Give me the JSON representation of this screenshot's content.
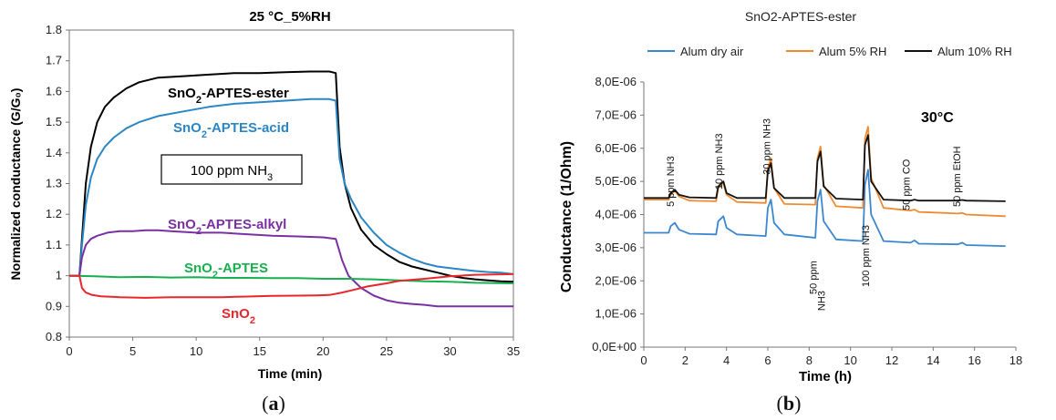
{
  "chart_data": [
    {
      "type": "line",
      "panel_label": "a",
      "title": "25 °C_5%RH",
      "xlabel": "Time (min)",
      "ylabel": "Normalized conductance (G/G₀)",
      "xlim": [
        0,
        35
      ],
      "ylim": [
        0.8,
        1.8
      ],
      "xticks": [
        0,
        5,
        10,
        15,
        20,
        25,
        30,
        35
      ],
      "yticks": [
        0.8,
        0.9,
        1,
        1.1,
        1.2,
        1.3,
        1.4,
        1.5,
        1.6,
        1.7,
        1.8
      ],
      "ytick_labels": [
        "0.8",
        "0.9",
        "1",
        "1.1",
        "1.2",
        "1.3",
        "1.4",
        "1.5",
        "1.6",
        "1.7",
        "1.8"
      ],
      "grid": false,
      "annotation": {
        "text": "100 ppm NH",
        "subscript": "3"
      },
      "series": [
        {
          "name": "SnO₂-APTES-ester",
          "label_main": "SnO",
          "label_sub": "2",
          "label_rest": "-APTES-ester",
          "color": "#000000",
          "x": [
            0,
            0.8,
            1.0,
            1.3,
            1.7,
            2.2,
            2.8,
            3.5,
            4.5,
            5.5,
            7,
            9,
            11,
            13,
            15,
            17,
            19,
            20.5,
            21,
            21.3,
            21.7,
            22.2,
            23,
            24,
            25,
            26,
            27,
            28,
            29,
            30,
            31,
            32,
            33,
            34,
            35
          ],
          "y": [
            1.0,
            1.0,
            1.12,
            1.3,
            1.42,
            1.5,
            1.55,
            1.58,
            1.61,
            1.63,
            1.645,
            1.65,
            1.655,
            1.66,
            1.66,
            1.663,
            1.665,
            1.665,
            1.66,
            1.42,
            1.3,
            1.22,
            1.15,
            1.1,
            1.07,
            1.045,
            1.03,
            1.02,
            1.01,
            1.0,
            0.993,
            0.988,
            0.985,
            0.982,
            0.98
          ]
        },
        {
          "name": "SnO₂-APTES-acid",
          "label_main": "SnO",
          "label_sub": "2",
          "label_rest": "-APTES-acid",
          "color": "#2b86c5",
          "x": [
            0,
            0.8,
            1.0,
            1.3,
            1.7,
            2.2,
            2.8,
            3.5,
            4.5,
            5.5,
            7,
            9,
            11,
            13,
            15,
            17,
            19,
            20.5,
            21,
            21.3,
            21.7,
            22.2,
            23,
            24,
            25,
            26,
            27,
            28,
            29,
            30,
            31,
            32,
            33,
            34,
            35
          ],
          "y": [
            1.0,
            1.0,
            1.1,
            1.23,
            1.32,
            1.38,
            1.42,
            1.45,
            1.48,
            1.5,
            1.52,
            1.535,
            1.55,
            1.56,
            1.565,
            1.57,
            1.575,
            1.575,
            1.57,
            1.38,
            1.3,
            1.25,
            1.19,
            1.14,
            1.1,
            1.075,
            1.055,
            1.04,
            1.03,
            1.025,
            1.02,
            1.015,
            1.012,
            1.01,
            1.005
          ]
        },
        {
          "name": "SnO₂-APTES-alkyl",
          "label_main": "SnO",
          "label_sub": "2",
          "label_rest": "-APTES-alkyl",
          "color": "#7a2fa3",
          "x": [
            0,
            0.8,
            1.0,
            1.3,
            1.7,
            2.2,
            3,
            4,
            5,
            6,
            7,
            8,
            10,
            12,
            14,
            16,
            18,
            20,
            21,
            21.5,
            22,
            23,
            24,
            25,
            26,
            27,
            28,
            29,
            30,
            31,
            32,
            33,
            34,
            35
          ],
          "y": [
            1.0,
            1.0,
            1.06,
            1.1,
            1.12,
            1.13,
            1.14,
            1.145,
            1.145,
            1.148,
            1.148,
            1.145,
            1.14,
            1.14,
            1.135,
            1.13,
            1.128,
            1.125,
            1.12,
            1.05,
            1.0,
            0.96,
            0.935,
            0.92,
            0.912,
            0.908,
            0.905,
            0.9,
            0.9,
            0.9,
            0.9,
            0.9,
            0.9,
            0.9
          ]
        },
        {
          "name": "SnO₂-APTES",
          "label_main": "SnO",
          "label_sub": "2",
          "label_rest": "-APTES",
          "color": "#18b04f",
          "x": [
            0,
            2,
            4,
            6,
            8,
            10,
            12,
            14,
            16,
            18,
            20,
            22,
            24,
            26,
            28,
            30,
            32,
            35
          ],
          "y": [
            1.0,
            0.998,
            0.995,
            0.996,
            0.994,
            0.995,
            0.993,
            0.993,
            0.992,
            0.992,
            0.99,
            0.99,
            0.988,
            0.985,
            0.982,
            0.98,
            0.977,
            0.975
          ]
        },
        {
          "name": "SnO₂",
          "label_main": "SnO",
          "label_sub": "2",
          "label_rest": "",
          "color": "#e8262b",
          "x": [
            0,
            0.8,
            1.0,
            1.3,
            1.8,
            2.5,
            4,
            6,
            8,
            10,
            12,
            14,
            16,
            18,
            19.5,
            20.5,
            21.5,
            22.5,
            23.5,
            25,
            26,
            28,
            30,
            32,
            35
          ],
          "y": [
            1.0,
            1.0,
            0.96,
            0.945,
            0.937,
            0.933,
            0.93,
            0.928,
            0.93,
            0.93,
            0.93,
            0.932,
            0.934,
            0.935,
            0.936,
            0.937,
            0.945,
            0.955,
            0.965,
            0.975,
            0.983,
            0.99,
            0.998,
            1.003,
            1.005
          ]
        }
      ]
    },
    {
      "type": "line",
      "panel_label": "b",
      "title": "SnO2-APTES-ester",
      "xlabel": "Time (h)",
      "ylabel": "Conductance (1/Ohm)",
      "xlim": [
        0,
        18
      ],
      "ylim": [
        0,
        8e-06
      ],
      "xticks": [
        0,
        2,
        4,
        6,
        8,
        10,
        12,
        14,
        16,
        18
      ],
      "xtick_labels": [
        "0",
        "2",
        "4",
        "6",
        "8",
        "10",
        "12",
        "14",
        "16",
        "18"
      ],
      "yticks": [
        0,
        1e-06,
        2e-06,
        3e-06,
        4e-06,
        5e-06,
        6e-06,
        7e-06,
        8e-06
      ],
      "ytick_labels": [
        "0,0E+00",
        "1,0E-06",
        "2,0E-06",
        "3,0E-06",
        "4,0E-06",
        "5,0E-06",
        "6,0E-06",
        "7,0E-06",
        "8,0E-06"
      ],
      "grid": false,
      "legend_position": "top",
      "temperature_label": "30°C",
      "annotations": [
        {
          "text": "5 ppm NH3",
          "x": 1.45,
          "y": 5e-06,
          "rotate": -90
        },
        {
          "text": "10 ppm NH3",
          "x": 3.8,
          "y": 5.6e-06,
          "rotate": -90
        },
        {
          "text": "30 ppm NH3",
          "x": 6.1,
          "y": 6.05e-06,
          "rotate": -90
        },
        {
          "text": "50 ppm CO",
          "x": 12.85,
          "y": 4.9e-06,
          "rotate": -90
        },
        {
          "text": "50 ppm EtOH",
          "x": 15.3,
          "y": 5.15e-06,
          "rotate": -90
        },
        {
          "text": "50 ppm",
          "x": 8.35,
          "y": 2.1e-06,
          "rotate": -90
        },
        {
          "text": "NH3",
          "x": 8.75,
          "y": 1.4e-06,
          "rotate": -90
        },
        {
          "text": "100 ppm NH3",
          "x": 10.9,
          "y": 2.75e-06,
          "rotate": -90
        }
      ],
      "series": [
        {
          "name": "Alum dry air",
          "color": "#3a87cf",
          "x": [
            0,
            1.2,
            1.3,
            1.5,
            1.7,
            2.2,
            3.5,
            3.6,
            3.85,
            4.0,
            4.5,
            5.9,
            6.0,
            6.15,
            6.3,
            6.8,
            8.3,
            8.4,
            8.55,
            8.7,
            9.3,
            10.6,
            10.7,
            10.85,
            11.0,
            11.6,
            12.9,
            13.1,
            13.3,
            15.2,
            15.4,
            15.6,
            17.5
          ],
          "y": [
            3.45e-06,
            3.45e-06,
            3.65e-06,
            3.75e-06,
            3.55e-06,
            3.42e-06,
            3.4e-06,
            3.8e-06,
            3.95e-06,
            3.6e-06,
            3.4e-06,
            3.35e-06,
            4.2e-06,
            4.45e-06,
            3.75e-06,
            3.4e-06,
            3.3e-06,
            4.4e-06,
            4.75e-06,
            3.8e-06,
            3.25e-06,
            3.2e-06,
            4.9e-06,
            5.35e-06,
            4e-06,
            3.2e-06,
            3.15e-06,
            3.22e-06,
            3.12e-06,
            3.1e-06,
            3.15e-06,
            3.08e-06,
            3.05e-06
          ]
        },
        {
          "name": "Alum 5% RH",
          "color": "#f08a30",
          "x": [
            0,
            1.2,
            1.3,
            1.5,
            1.7,
            2.2,
            3.5,
            3.6,
            3.85,
            4.0,
            4.5,
            5.9,
            6.0,
            6.15,
            6.3,
            6.8,
            8.3,
            8.4,
            8.55,
            8.7,
            9.3,
            10.6,
            10.7,
            10.85,
            11.0,
            11.6,
            12.9,
            13.1,
            13.3,
            15.2,
            15.4,
            15.6,
            17.5
          ],
          "y": [
            4.45e-06,
            4.45e-06,
            4.6e-06,
            4.72e-06,
            4.55e-06,
            4.42e-06,
            4.4e-06,
            4.8e-06,
            4.95e-06,
            4.6e-06,
            4.38e-06,
            4.35e-06,
            5.4e-06,
            5.7e-06,
            4.8e-06,
            4.32e-06,
            4.3e-06,
            5.7e-06,
            6.05e-06,
            4.9e-06,
            4.25e-06,
            4.2e-06,
            6.3e-06,
            6.65e-06,
            5.1e-06,
            4.2e-06,
            4.12e-06,
            4.15e-06,
            4.08e-06,
            4.03e-06,
            4.05e-06,
            4e-06,
            3.95e-06
          ]
        },
        {
          "name": "Alum 10% RH",
          "color": "#111111",
          "x": [
            0,
            1.2,
            1.3,
            1.5,
            1.7,
            2.2,
            3.5,
            3.6,
            3.85,
            4.0,
            4.5,
            5.9,
            6.0,
            6.15,
            6.3,
            6.8,
            8.3,
            8.4,
            8.55,
            8.7,
            9.3,
            10.6,
            10.7,
            10.85,
            11.0,
            11.6,
            12.9,
            13.1,
            13.3,
            15.2,
            15.4,
            15.6,
            17.5
          ],
          "y": [
            4.5e-06,
            4.5e-06,
            4.65e-06,
            4.75e-06,
            4.6e-06,
            4.52e-06,
            4.5e-06,
            4.85e-06,
            5e-06,
            4.65e-06,
            4.5e-06,
            4.5e-06,
            5.3e-06,
            5.55e-06,
            4.8e-06,
            4.5e-06,
            4.5e-06,
            5.6e-06,
            5.9e-06,
            4.85e-06,
            4.48e-06,
            4.45e-06,
            6.1e-06,
            6.4e-06,
            5e-06,
            4.45e-06,
            4.42e-06,
            4.45e-06,
            4.42e-06,
            4.42e-06,
            4.44e-06,
            4.42e-06,
            4.4e-06
          ]
        }
      ]
    }
  ]
}
